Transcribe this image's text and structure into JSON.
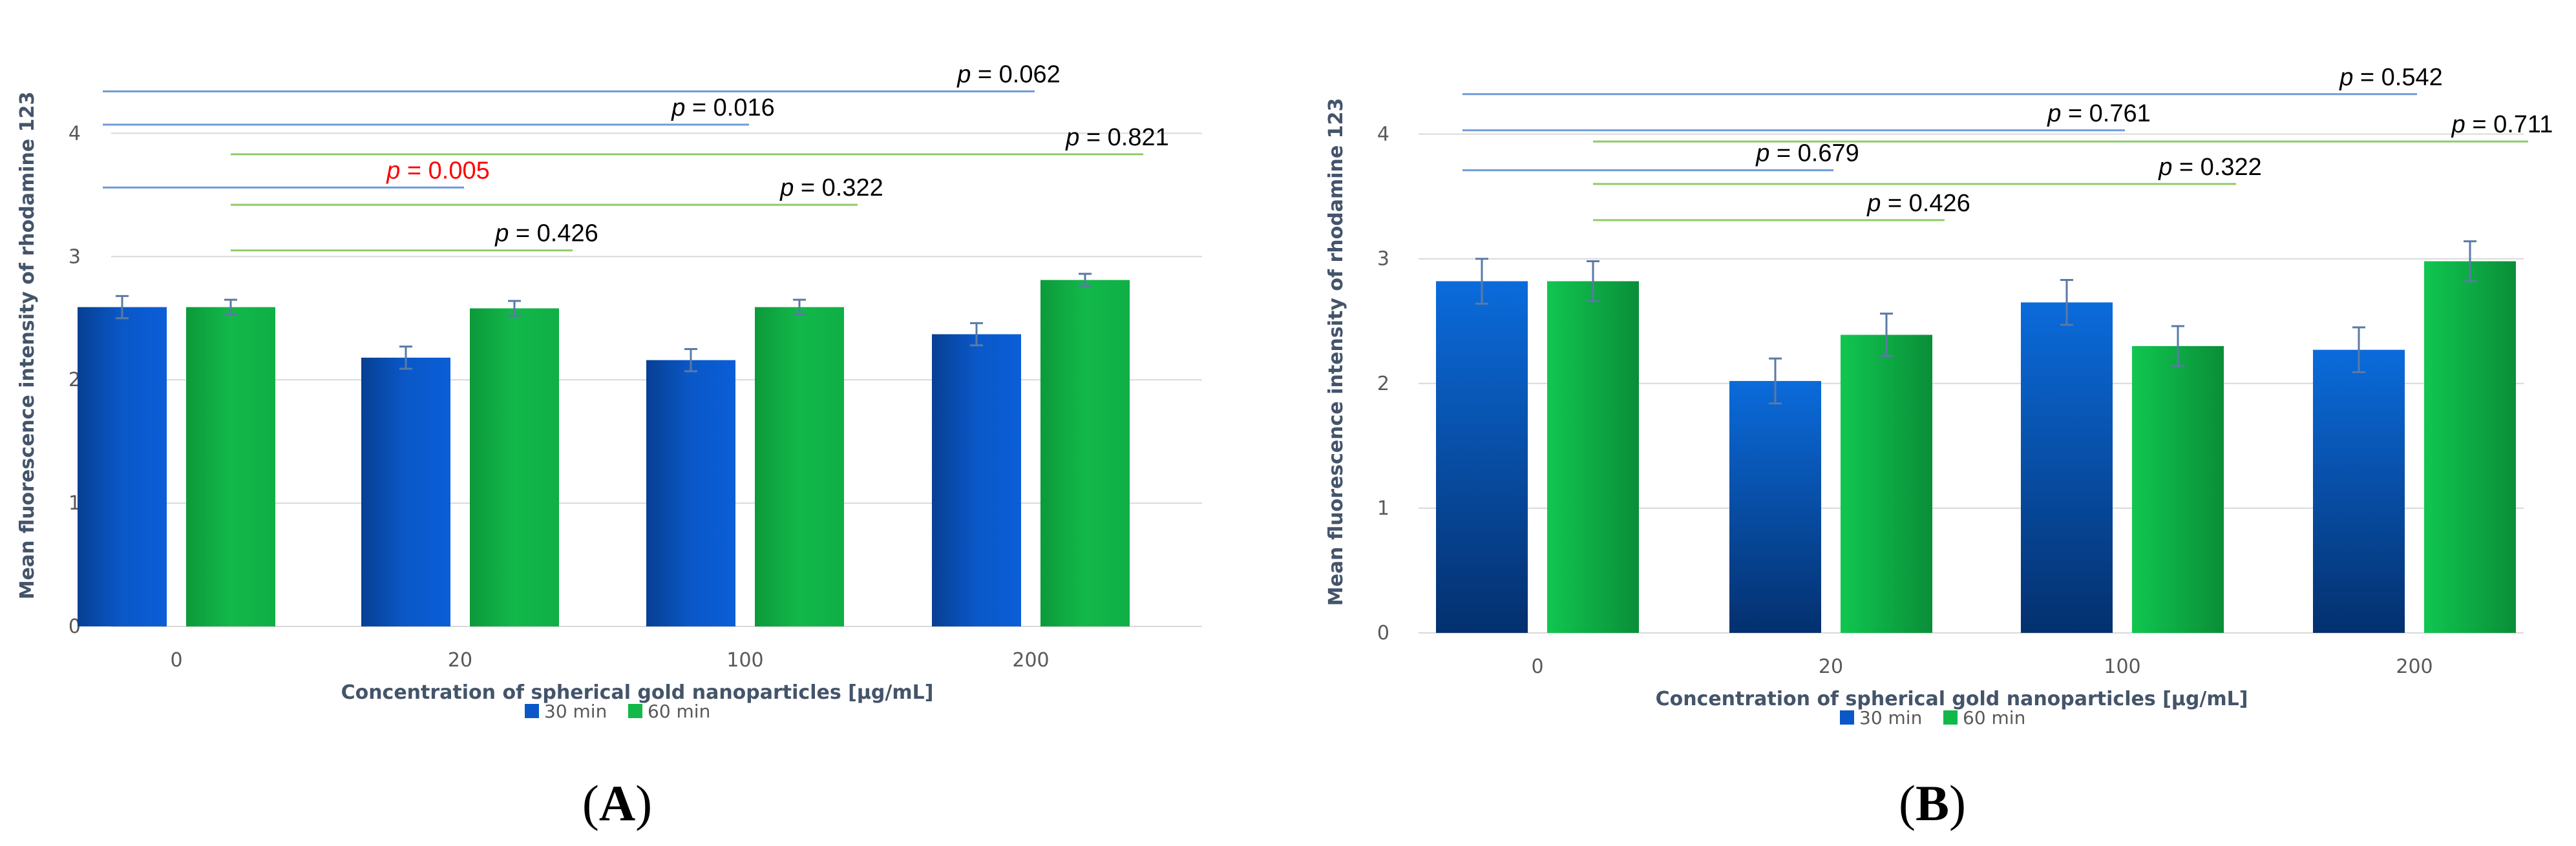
{
  "colors": {
    "series_30": "#0A58C8",
    "series_60": "#12B84A",
    "sig_line_30": "#6F9BD8",
    "sig_line_60": "#8FCC66",
    "sig_text": "#000000",
    "sig_highlight": "#FF0000",
    "grid": "#D9D9D9",
    "error_bar": "#5A7AA5"
  },
  "legend": {
    "s30": "30 min",
    "s60": "60 min"
  },
  "chart_data": [
    {
      "panel": "(A)",
      "panel_letter": "A",
      "type": "bar",
      "categories": [
        "0",
        "20",
        "100",
        "200"
      ],
      "series": [
        {
          "name": "30 min",
          "values": [
            2.59,
            2.18,
            2.16,
            2.37
          ],
          "errors": [
            0.09,
            0.09,
            0.09,
            0.09
          ]
        },
        {
          "name": "60 min",
          "values": [
            2.59,
            2.58,
            2.59,
            2.81
          ],
          "errors": [
            0.06,
            0.06,
            0.06,
            0.05
          ]
        }
      ],
      "xlabel": "Concentration of spherical gold nanoparticles [µg/mL]",
      "ylabel": "Mean fluorescence intensity of rhodamine 123",
      "ylim": [
        0,
        4.4
      ],
      "yticks": [
        "0",
        "1",
        "2",
        "3",
        "4"
      ],
      "grid": true,
      "legend_position": "bottom",
      "comparisons": [
        {
          "series": "30 min",
          "from": 0,
          "to": 3,
          "y": 4.34,
          "p": "0.062",
          "significant": false
        },
        {
          "series": "30 min",
          "from": 0,
          "to": 2,
          "y": 4.07,
          "p": "0.016",
          "significant": false
        },
        {
          "series": "60 min",
          "from": 0,
          "to": 3,
          "y": 3.83,
          "p": "0.821",
          "significant": false
        },
        {
          "series": "30 min",
          "from": 0,
          "to": 1,
          "y": 3.56,
          "p": "0.005",
          "significant": true
        },
        {
          "series": "60 min",
          "from": 0,
          "to": 2,
          "y": 3.42,
          "p": "0.322",
          "significant": false
        },
        {
          "series": "60 min",
          "from": 0,
          "to": 1,
          "y": 3.05,
          "p": "0.426",
          "significant": false
        }
      ]
    },
    {
      "panel": "(B)",
      "panel_letter": "B",
      "type": "bar",
      "categories": [
        "0",
        "20",
        "100",
        "200"
      ],
      "series": [
        {
          "name": "30 min",
          "values": [
            2.82,
            2.02,
            2.65,
            2.27
          ],
          "errors": [
            0.18,
            0.18,
            0.18,
            0.18
          ]
        },
        {
          "name": "60 min",
          "values": [
            2.82,
            2.39,
            2.3,
            2.98
          ],
          "errors": [
            0.16,
            0.17,
            0.16,
            0.16
          ]
        }
      ],
      "xlabel": "Concentration of spherical gold nanoparticles [µg/mL]",
      "ylabel": "Mean fluorescence intensity of rhodamine 123",
      "ylim": [
        0,
        4.35
      ],
      "yticks": [
        "0",
        "1",
        "2",
        "3",
        "4"
      ],
      "grid": true,
      "legend_position": "bottom",
      "comparisons": [
        {
          "series": "30 min",
          "from": 0,
          "to": 3,
          "y": 4.32,
          "p": "0.542",
          "significant": false
        },
        {
          "series": "30 min",
          "from": 0,
          "to": 2,
          "y": 4.03,
          "p": "0.761",
          "significant": false
        },
        {
          "series": "60 min",
          "from": 0,
          "to": 3,
          "y": 3.94,
          "p": "0.711",
          "significant": false
        },
        {
          "series": "30 min",
          "from": 0,
          "to": 1,
          "y": 3.71,
          "p": "0.679",
          "significant": false
        },
        {
          "series": "60 min",
          "from": 0,
          "to": 2,
          "y": 3.6,
          "p": "0.322",
          "significant": false
        },
        {
          "series": "60 min",
          "from": 0,
          "to": 1,
          "y": 3.31,
          "p": "0.426",
          "significant": false
        }
      ]
    }
  ]
}
